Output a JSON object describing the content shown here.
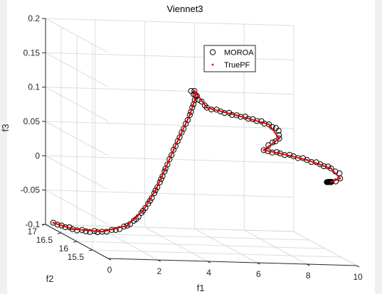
{
  "chart_data": {
    "type": "scatter",
    "title": "Viennet3",
    "xlabel": "f1",
    "ylabel": "f2",
    "zlabel": "f3",
    "xlim": [
      0,
      10
    ],
    "ylim": [
      15,
      17
    ],
    "zlim": [
      -0.1,
      0.2
    ],
    "x_ticks": [
      "0",
      "2",
      "4",
      "6",
      "8",
      "10"
    ],
    "y_ticks": [
      "15.5",
      "16",
      "16.5",
      "17"
    ],
    "z_ticks": [
      "-0.1",
      "-0.05",
      "0",
      "0.05",
      "0.1",
      "0.15",
      "0.2"
    ],
    "grid": true,
    "legend_position": "top-right",
    "series": [
      {
        "name": "MOROA",
        "marker": "open-circle",
        "color": "#000000",
        "points": [
          [
            0.3,
            16.99,
            -0.097
          ],
          [
            0.6,
            16.96,
            -0.1
          ],
          [
            1.0,
            16.93,
            -0.104
          ],
          [
            1.5,
            16.9,
            -0.106
          ],
          [
            2.1,
            16.86,
            -0.105
          ],
          [
            2.6,
            16.82,
            -0.101
          ],
          [
            3.0,
            16.77,
            -0.093
          ],
          [
            3.3,
            16.72,
            -0.082
          ],
          [
            3.5,
            16.66,
            -0.068
          ],
          [
            3.7,
            16.6,
            -0.052
          ],
          [
            3.85,
            16.54,
            -0.035
          ],
          [
            4.0,
            16.48,
            -0.017
          ],
          [
            4.1,
            16.42,
            0.0
          ],
          [
            4.2,
            16.37,
            0.015
          ],
          [
            4.3,
            16.32,
            0.03
          ],
          [
            4.4,
            16.27,
            0.044
          ],
          [
            4.5,
            16.22,
            0.058
          ],
          [
            4.6,
            16.17,
            0.072
          ],
          [
            4.7,
            16.12,
            0.086
          ],
          [
            4.75,
            16.08,
            0.098
          ],
          [
            4.8,
            16.04,
            0.11
          ],
          [
            4.8,
            16.02,
            0.118
          ],
          [
            4.75,
            16.01,
            0.124
          ],
          [
            4.6,
            16.0,
            0.124
          ],
          [
            5.2,
            15.97,
            0.101
          ],
          [
            5.7,
            15.93,
            0.097
          ],
          [
            6.3,
            15.89,
            0.093
          ],
          [
            6.9,
            15.85,
            0.089
          ],
          [
            7.5,
            15.81,
            0.083
          ],
          [
            7.85,
            15.78,
            0.075
          ],
          [
            7.85,
            15.76,
            0.064
          ],
          [
            7.4,
            15.75,
            0.054
          ],
          [
            7.2,
            15.74,
            0.047
          ],
          [
            7.35,
            15.72,
            0.046
          ],
          [
            7.8,
            15.69,
            0.044
          ],
          [
            8.3,
            15.66,
            0.041
          ],
          [
            8.8,
            15.63,
            0.037
          ],
          [
            9.3,
            15.6,
            0.032
          ],
          [
            9.7,
            15.57,
            0.027
          ],
          [
            10.0,
            15.54,
            0.021
          ],
          [
            10.0,
            15.52,
            0.014
          ],
          [
            9.8,
            15.5,
            0.01
          ],
          [
            9.6,
            15.49,
            0.009
          ]
        ]
      },
      {
        "name": "TruePF",
        "marker": "dot",
        "color": "#e00000",
        "points": [
          [
            0.3,
            16.99,
            -0.097
          ],
          [
            1.0,
            16.93,
            -0.104
          ],
          [
            2.1,
            16.86,
            -0.105
          ],
          [
            3.0,
            16.77,
            -0.093
          ],
          [
            3.5,
            16.66,
            -0.068
          ],
          [
            3.85,
            16.54,
            -0.035
          ],
          [
            4.1,
            16.42,
            0.0
          ],
          [
            4.3,
            16.32,
            0.03
          ],
          [
            4.5,
            16.22,
            0.058
          ],
          [
            4.7,
            16.12,
            0.086
          ],
          [
            4.8,
            16.04,
            0.11
          ],
          [
            4.75,
            16.01,
            0.124
          ],
          [
            5.2,
            15.97,
            0.101
          ],
          [
            6.3,
            15.89,
            0.093
          ],
          [
            7.5,
            15.81,
            0.083
          ],
          [
            7.85,
            15.76,
            0.064
          ],
          [
            7.2,
            15.74,
            0.047
          ],
          [
            7.8,
            15.69,
            0.044
          ],
          [
            8.8,
            15.63,
            0.037
          ],
          [
            9.7,
            15.57,
            0.027
          ],
          [
            10.0,
            15.52,
            0.014
          ],
          [
            9.6,
            15.49,
            0.009
          ]
        ]
      }
    ]
  }
}
